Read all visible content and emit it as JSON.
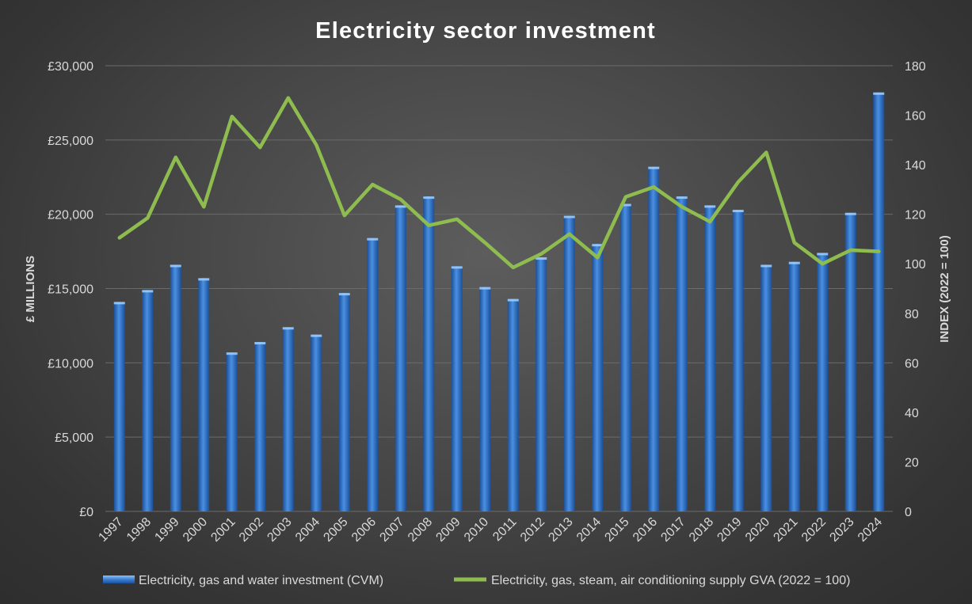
{
  "chart_data": {
    "type": "bar",
    "title": "Electricity sector investment",
    "categories": [
      "1997",
      "1998",
      "1999",
      "2000",
      "2001",
      "2002",
      "2003",
      "2004",
      "2005",
      "2006",
      "2007",
      "2008",
      "2009",
      "2010",
      "2011",
      "2012",
      "2013",
      "2014",
      "2015",
      "2016",
      "2017",
      "2018",
      "2019",
      "2020",
      "2021",
      "2022",
      "2023",
      "2024"
    ],
    "y_left": {
      "label": "£ MILLIONS",
      "range": [
        0,
        30000
      ],
      "ticks": [
        0,
        5000,
        10000,
        15000,
        20000,
        25000,
        30000
      ],
      "tick_labels": [
        "£0",
        "£5,000",
        "£10,000",
        "£15,000",
        "£20,000",
        "£25,000",
        "£30,000"
      ]
    },
    "y_right": {
      "label": "INDEX (2022 = 100)",
      "range": [
        0,
        180
      ],
      "ticks": [
        0,
        20,
        40,
        60,
        80,
        100,
        120,
        140,
        160,
        180
      ],
      "tick_labels": [
        "0",
        "20",
        "40",
        "60",
        "80",
        "100",
        "120",
        "140",
        "160",
        "180"
      ]
    },
    "grid": true,
    "legend_position": "bottom",
    "series": [
      {
        "name": "Electricity, gas and water investment (CVM)",
        "type": "bar",
        "axis": "left",
        "color": "#3b7fd4",
        "values": [
          14100,
          14900,
          16600,
          15700,
          10700,
          11400,
          12400,
          11900,
          14700,
          18400,
          20600,
          21200,
          16500,
          15100,
          14300,
          17100,
          19900,
          18000,
          20700,
          23200,
          21200,
          20600,
          20300,
          16600,
          16800,
          17400,
          20100,
          28200
        ]
      },
      {
        "name": "Electricity, gas, steam, air conditioning supply GVA (2022 = 100)",
        "type": "line",
        "axis": "right",
        "color": "#8fbc4f",
        "values": [
          110.5,
          118.5,
          143.0,
          123.0,
          159.5,
          147.0,
          167.0,
          148.0,
          119.5,
          132.0,
          126.0,
          115.5,
          118.0,
          108.5,
          98.5,
          104.0,
          112.0,
          102.5,
          127.0,
          131.0,
          123.0,
          117.0,
          133.0,
          145.0,
          108.5,
          100.0,
          105.5,
          105.0
        ]
      }
    ]
  }
}
